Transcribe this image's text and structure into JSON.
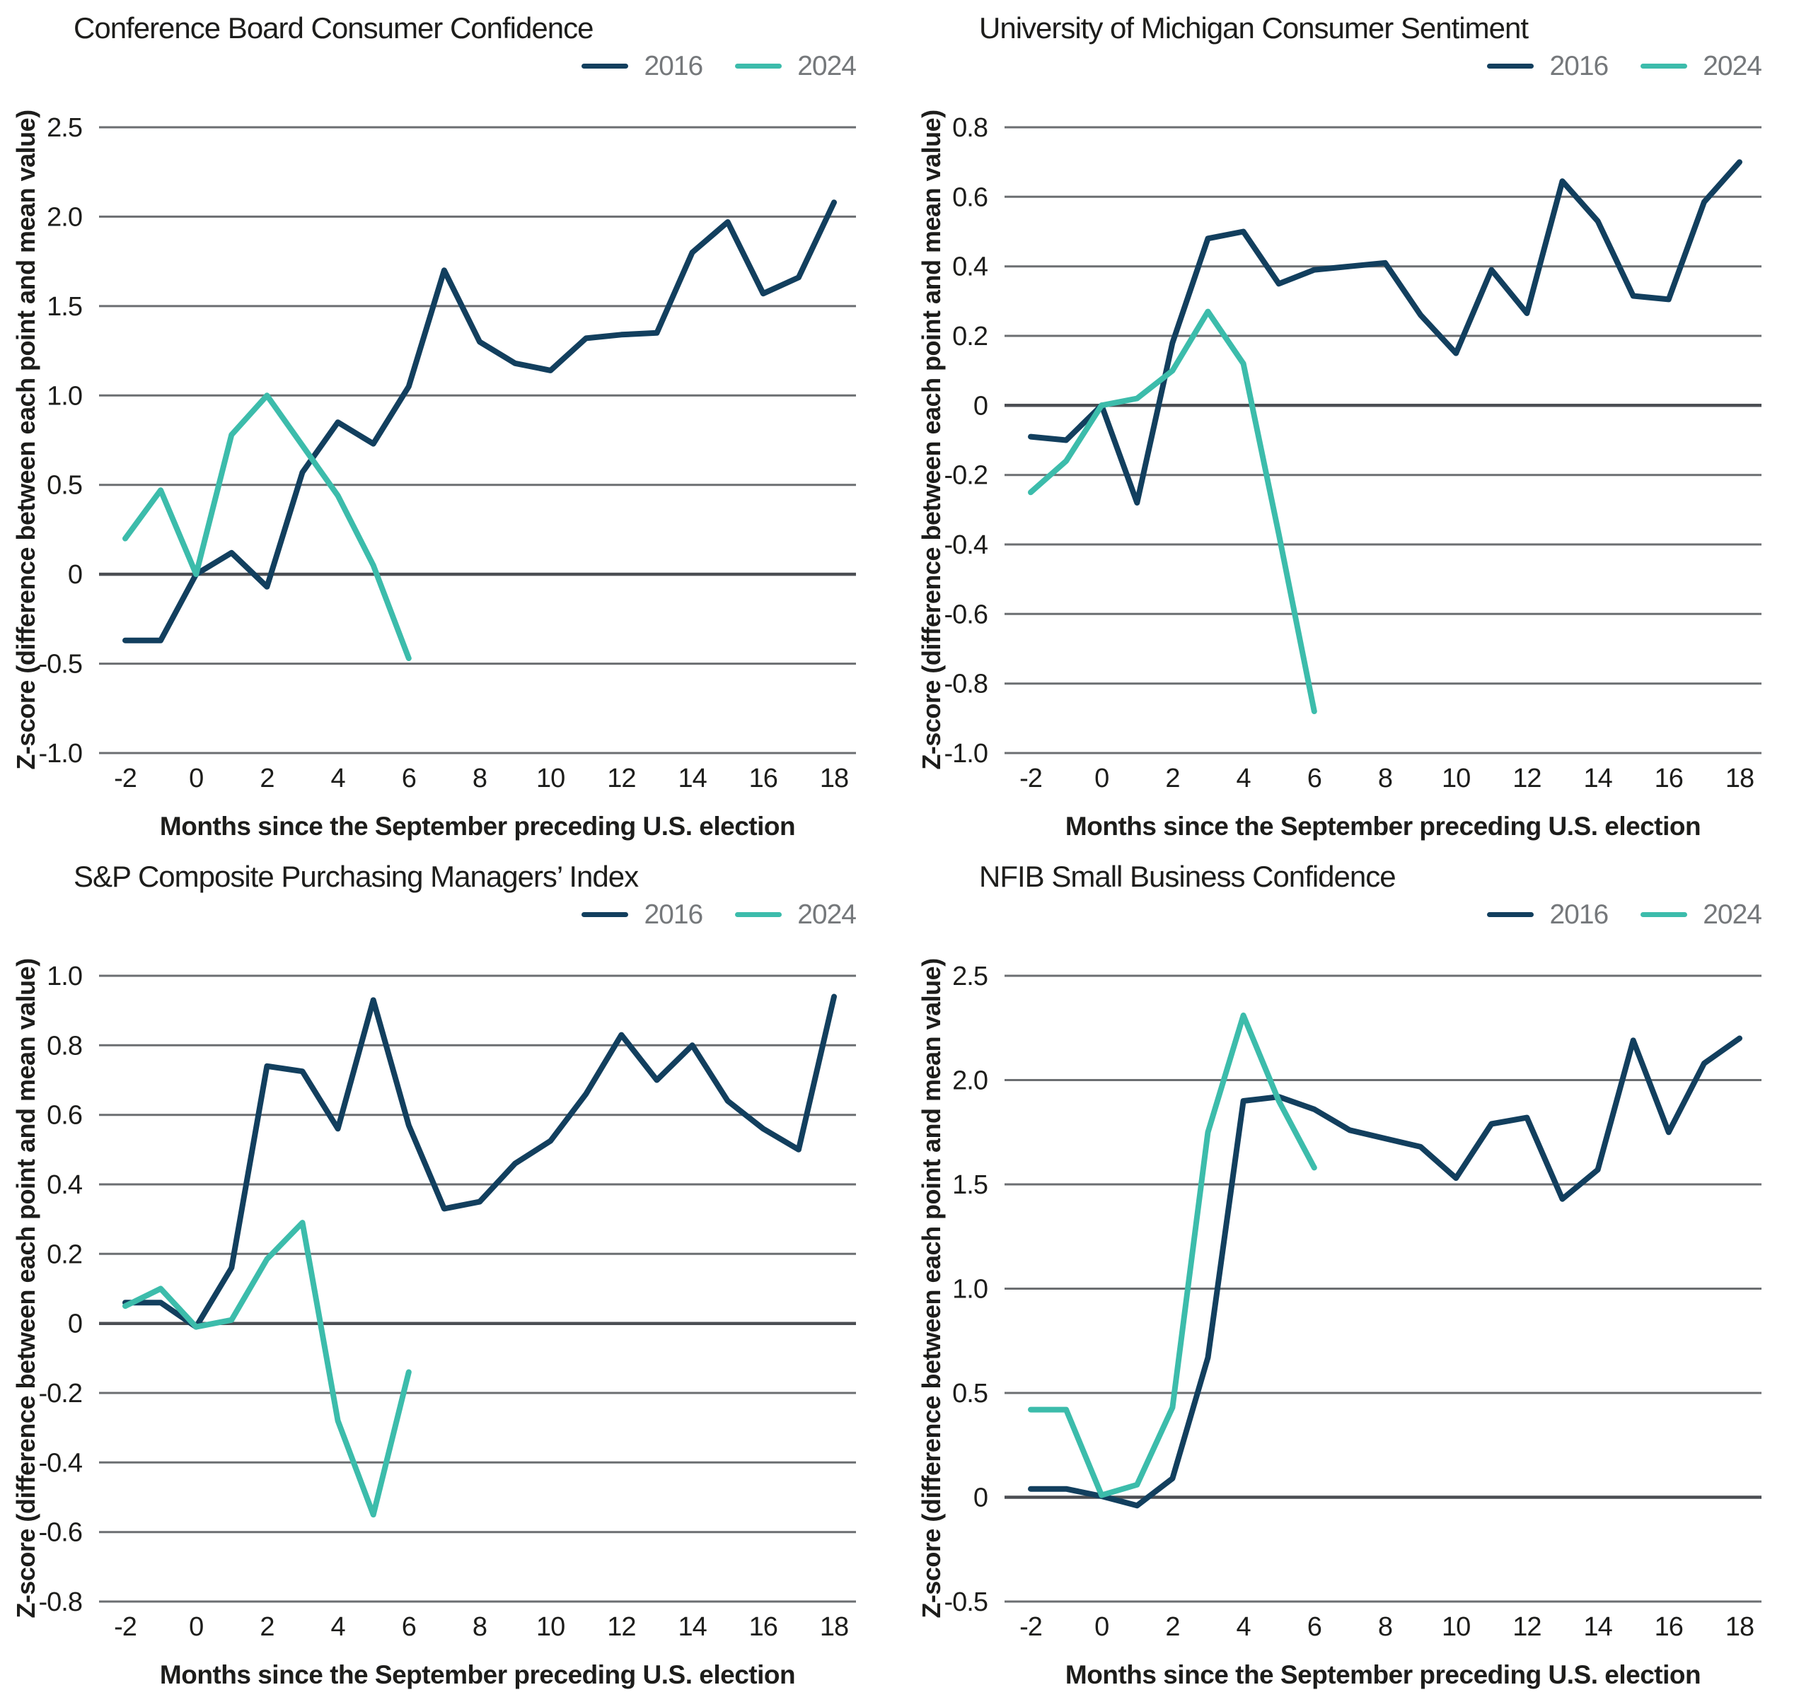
{
  "colors": {
    "series_2016": "#123F5E",
    "series_2024": "#3CBCAB",
    "grid": "#6B6E71",
    "zero_line": "#4B4E53",
    "tick_text": "#1D1D1B",
    "title_text": "#1D1D1B",
    "legend_text": "#75787B",
    "background": "#FFFFFF"
  },
  "legend": {
    "position": "top-right",
    "items": [
      {
        "label": "2016"
      },
      {
        "label": "2024"
      }
    ]
  },
  "axis": {
    "x_label": "Months since the September preceding U.S. election",
    "y_label": "Z-score (difference between each point and mean value)"
  },
  "chart_data": [
    {
      "type": "line",
      "title": "Conference Board Consumer Confidence",
      "xlabel": "Months since the September preceding U.S. election",
      "ylabel": "Z-score (difference between each point and mean value)",
      "xlim": [
        -2,
        18
      ],
      "ylim": [
        -1.0,
        2.5
      ],
      "x_ticks": [
        -2,
        0,
        2,
        4,
        6,
        8,
        10,
        12,
        14,
        16,
        18
      ],
      "yticks": [
        2.5,
        2.0,
        1.5,
        1.0,
        0.5,
        0,
        -0.5,
        -1.0
      ],
      "grid": true,
      "series": [
        {
          "name": "2016",
          "color": "#123F5E",
          "x": [
            -2,
            -1,
            0,
            1,
            2,
            3,
            4,
            5,
            6,
            7,
            8,
            9,
            10,
            11,
            12,
            13,
            14,
            15,
            16,
            17,
            18
          ],
          "values": [
            -0.37,
            -0.37,
            0.0,
            0.12,
            -0.07,
            0.57,
            0.85,
            0.73,
            1.05,
            1.7,
            1.3,
            1.18,
            1.14,
            1.32,
            1.34,
            1.35,
            1.8,
            1.97,
            1.57,
            1.66,
            2.08
          ]
        },
        {
          "name": "2024",
          "color": "#3CBCAB",
          "x": [
            -2,
            -1,
            0,
            1,
            2,
            3,
            4,
            5,
            6
          ],
          "values": [
            0.2,
            0.47,
            0.0,
            0.78,
            1.0,
            0.72,
            0.44,
            0.05,
            -0.47
          ]
        }
      ]
    },
    {
      "type": "line",
      "title": "University of Michigan Consumer Sentiment",
      "xlabel": "Months since the September preceding U.S. election",
      "ylabel": "Z-score (difference between each point and mean value)",
      "xlim": [
        -2,
        18
      ],
      "ylim": [
        -1.0,
        0.8
      ],
      "x_ticks": [
        -2,
        0,
        2,
        4,
        6,
        8,
        10,
        12,
        14,
        16,
        18
      ],
      "yticks": [
        0.8,
        0.6,
        0.4,
        0.2,
        0,
        -0.2,
        -0.4,
        -0.6,
        -0.8,
        -1.0
      ],
      "grid": true,
      "series": [
        {
          "name": "2016",
          "color": "#123F5E",
          "x": [
            -2,
            -1,
            0,
            1,
            2,
            3,
            4,
            5,
            6,
            7,
            8,
            9,
            10,
            11,
            12,
            13,
            14,
            15,
            16,
            17,
            18
          ],
          "values": [
            -0.09,
            -0.1,
            0.0,
            -0.28,
            0.18,
            0.48,
            0.5,
            0.35,
            0.39,
            0.4,
            0.41,
            0.26,
            0.15,
            0.39,
            0.265,
            0.645,
            0.53,
            0.315,
            0.305,
            0.585,
            0.7
          ]
        },
        {
          "name": "2024",
          "color": "#3CBCAB",
          "x": [
            -2,
            -1,
            0,
            1,
            2,
            3,
            4,
            5,
            6
          ],
          "values": [
            -0.25,
            -0.16,
            0.0,
            0.02,
            0.1,
            0.27,
            0.12,
            -0.37,
            -0.88
          ]
        }
      ]
    },
    {
      "type": "line",
      "title": "S&P Composite Purchasing Managers’ Index",
      "xlabel": "Months since the September preceding U.S. election",
      "ylabel": "Z-score (difference between each point and mean value)",
      "xlim": [
        -2,
        18
      ],
      "ylim": [
        -0.8,
        1.0
      ],
      "x_ticks": [
        -2,
        0,
        2,
        4,
        6,
        8,
        10,
        12,
        14,
        16,
        18
      ],
      "yticks": [
        1.0,
        0.8,
        0.6,
        0.4,
        0.2,
        0,
        -0.2,
        -0.4,
        -0.6,
        -0.8
      ],
      "grid": true,
      "series": [
        {
          "name": "2016",
          "color": "#123F5E",
          "x": [
            -2,
            -1,
            0,
            1,
            2,
            3,
            4,
            5,
            6,
            7,
            8,
            9,
            10,
            11,
            12,
            13,
            14,
            15,
            16,
            17,
            18
          ],
          "values": [
            0.06,
            0.06,
            -0.01,
            0.16,
            0.74,
            0.725,
            0.56,
            0.93,
            0.57,
            0.33,
            0.35,
            0.46,
            0.525,
            0.66,
            0.83,
            0.7,
            0.8,
            0.64,
            0.56,
            0.5,
            0.94
          ]
        },
        {
          "name": "2024",
          "color": "#3CBCAB",
          "x": [
            -2,
            -1,
            0,
            1,
            2,
            3,
            4,
            5,
            6
          ],
          "values": [
            0.05,
            0.1,
            -0.01,
            0.01,
            0.185,
            0.29,
            -0.28,
            -0.55,
            -0.14
          ]
        }
      ]
    },
    {
      "type": "line",
      "title": "NFIB Small Business Confidence",
      "xlabel": "Months since the September preceding U.S. election",
      "ylabel": "Z-score (difference between each point and mean value)",
      "xlim": [
        -2,
        18
      ],
      "ylim": [
        -0.5,
        2.5
      ],
      "x_ticks": [
        -2,
        0,
        2,
        4,
        6,
        8,
        10,
        12,
        14,
        16,
        18
      ],
      "yticks": [
        2.5,
        2.0,
        1.5,
        1.0,
        0.5,
        0,
        -0.5
      ],
      "grid": true,
      "series": [
        {
          "name": "2016",
          "color": "#123F5E",
          "x": [
            -2,
            -1,
            0,
            1,
            2,
            3,
            4,
            5,
            6,
            7,
            8,
            9,
            10,
            11,
            12,
            13,
            14,
            15,
            16,
            17,
            18
          ],
          "values": [
            0.04,
            0.04,
            0.005,
            -0.04,
            0.09,
            0.67,
            1.9,
            1.92,
            1.86,
            1.76,
            1.72,
            1.68,
            1.53,
            1.79,
            1.82,
            1.43,
            1.57,
            2.19,
            1.75,
            2.08,
            2.2
          ]
        },
        {
          "name": "2024",
          "color": "#3CBCAB",
          "x": [
            -2,
            -1,
            0,
            1,
            2,
            3,
            4,
            5,
            6
          ],
          "values": [
            0.42,
            0.42,
            0.01,
            0.06,
            0.43,
            1.75,
            2.31,
            1.9,
            1.58
          ]
        }
      ]
    }
  ]
}
